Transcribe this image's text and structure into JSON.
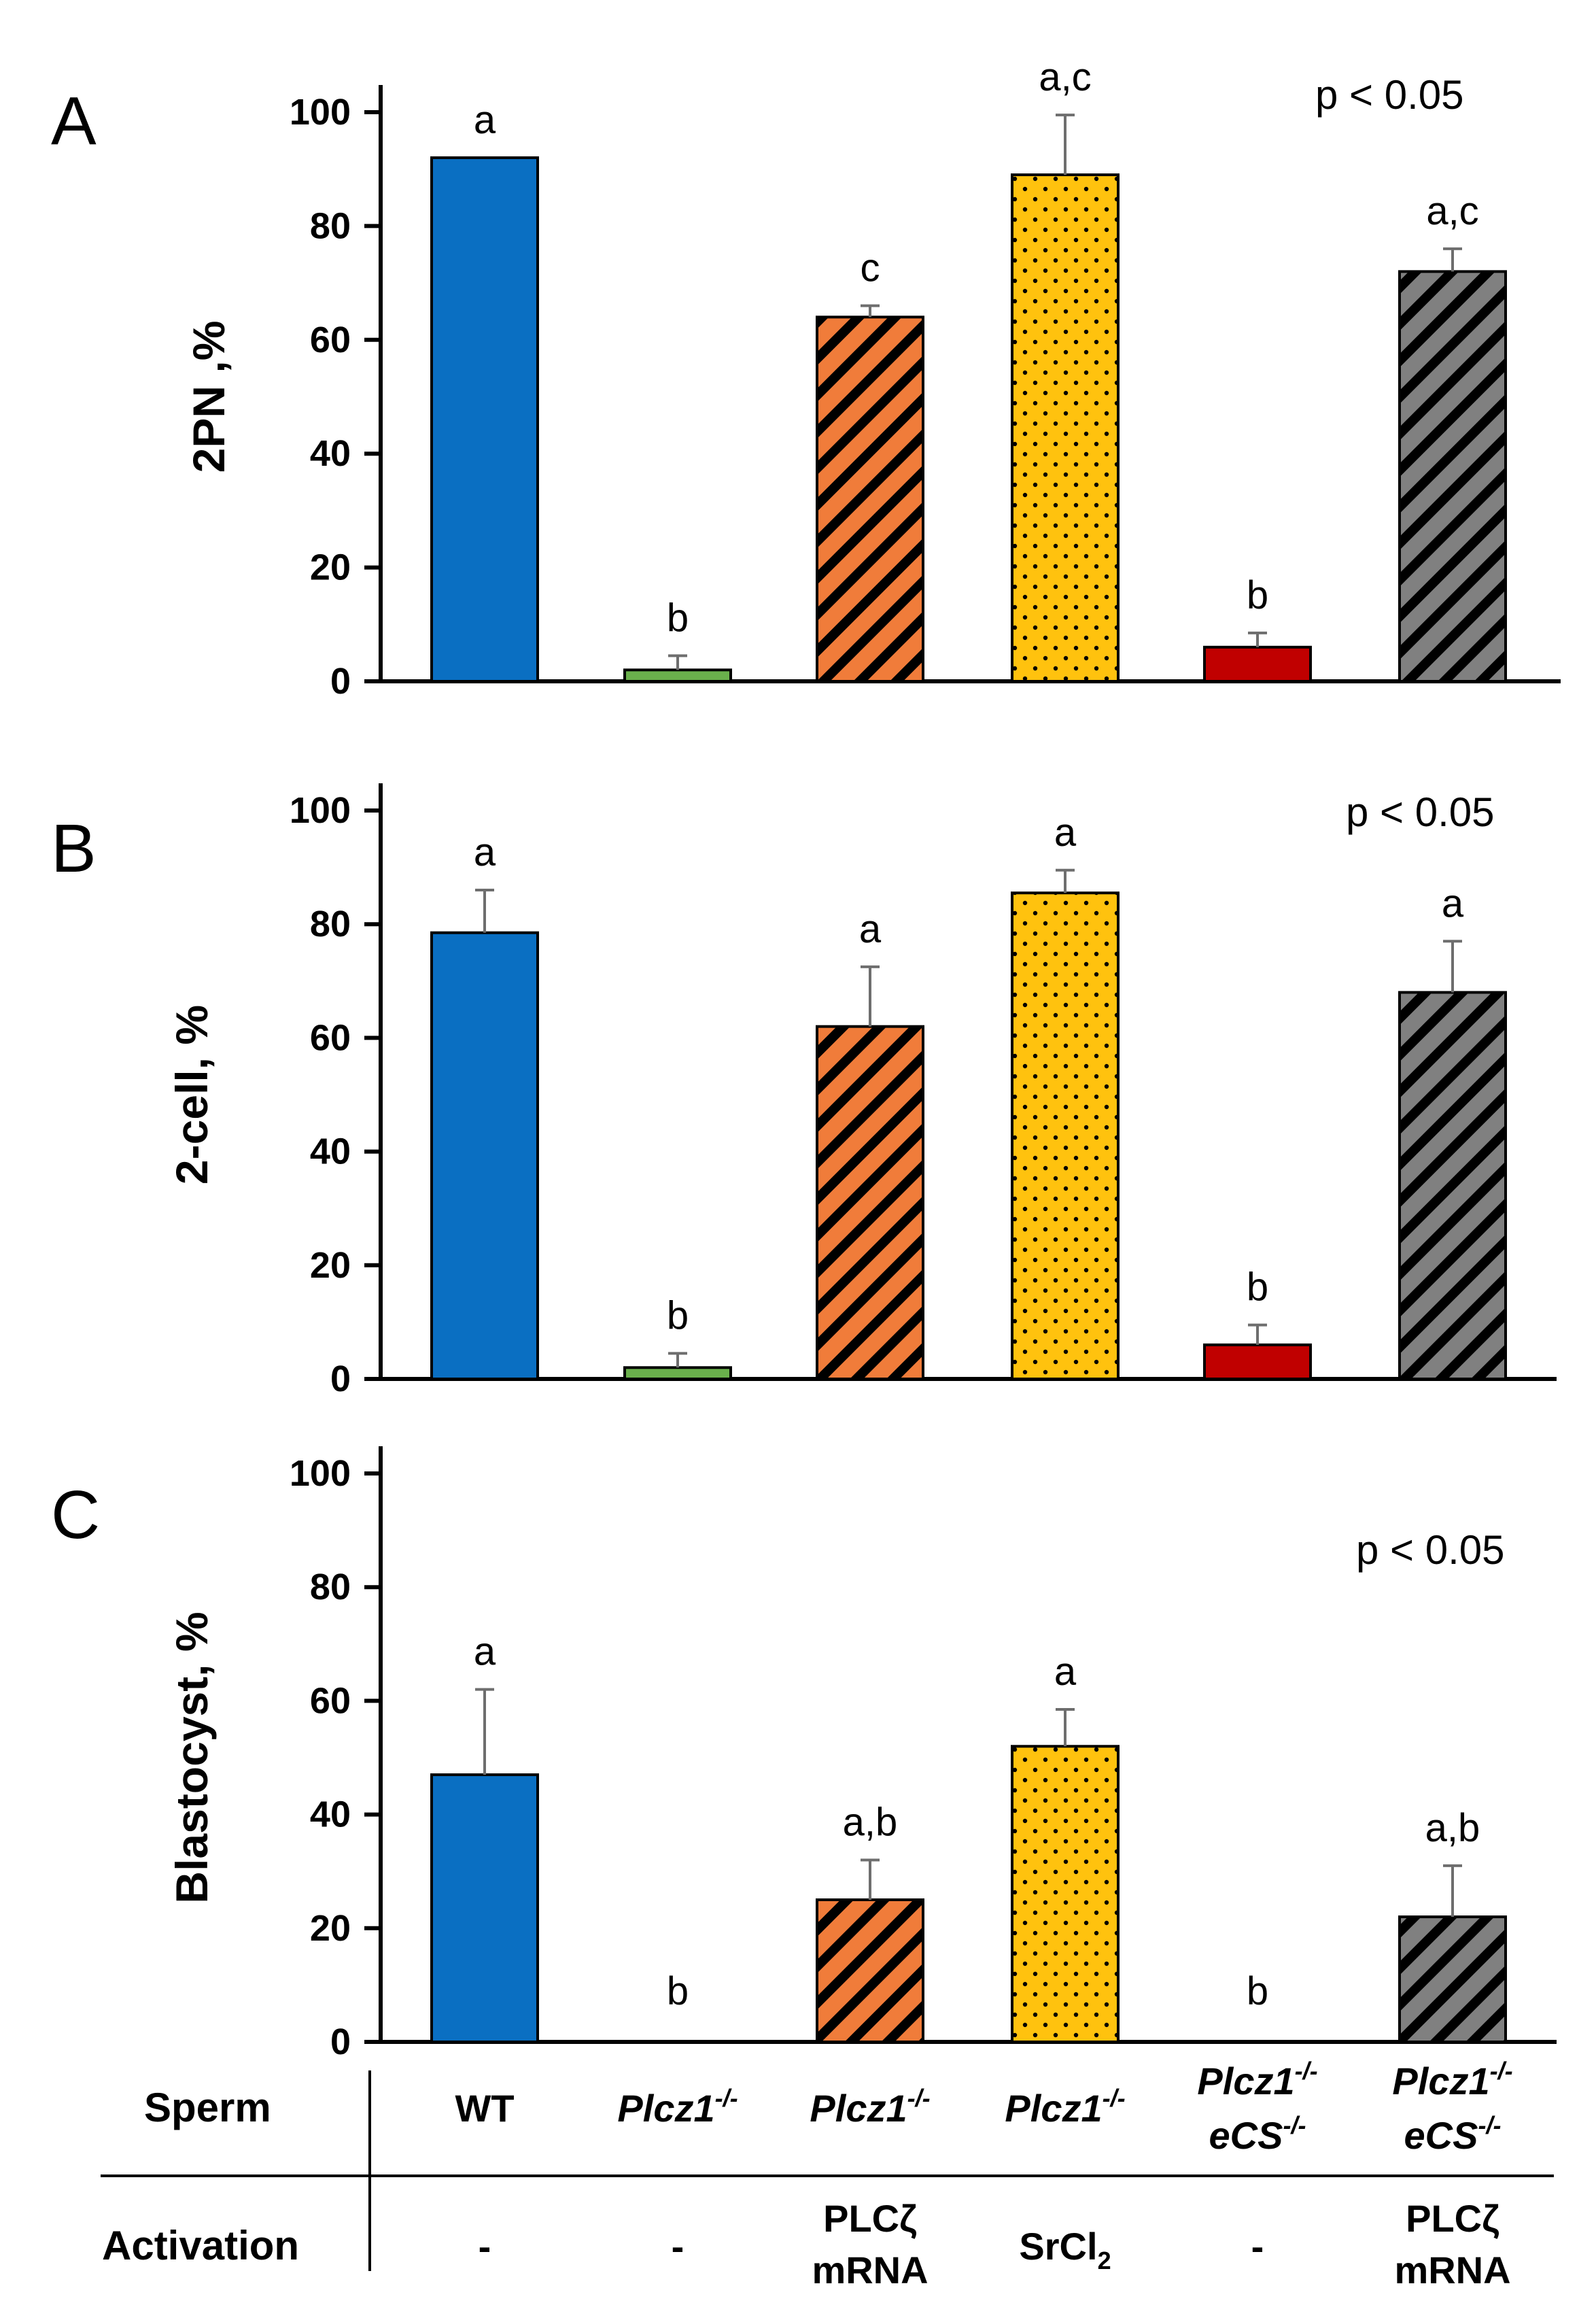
{
  "chart_data": [
    {
      "type": "bar",
      "panel": "A",
      "ylabel": "2PN ,%",
      "ylim": [
        0,
        100
      ],
      "yticks": [
        0,
        20,
        40,
        60,
        80,
        100
      ],
      "annotation": "p < 0.05",
      "values": [
        92,
        2,
        64,
        89,
        6,
        72
      ],
      "errors": [
        0,
        2.5,
        2,
        10.5,
        2.5,
        4
      ],
      "sig_labels": [
        "a",
        "b",
        "c",
        "a,c",
        "b",
        "a,c"
      ]
    },
    {
      "type": "bar",
      "panel": "B",
      "ylabel": "2-cell, %",
      "ylim": [
        0,
        100
      ],
      "yticks": [
        0,
        20,
        40,
        60,
        80,
        100
      ],
      "annotation": "p < 0.05",
      "values": [
        78.5,
        2,
        62,
        85.5,
        6,
        68
      ],
      "errors": [
        7.5,
        2.5,
        10.5,
        4,
        3.5,
        9
      ],
      "sig_labels": [
        "a",
        "b",
        "a",
        "a",
        "b",
        "a"
      ]
    },
    {
      "type": "bar",
      "panel": "C",
      "ylabel": "Blastocyst, %",
      "ylim": [
        0,
        100
      ],
      "yticks": [
        0,
        20,
        40,
        60,
        80,
        100
      ],
      "annotation": "p < 0.05",
      "values": [
        47,
        0,
        25,
        52,
        0,
        22
      ],
      "errors": [
        15,
        0,
        7,
        6.5,
        0,
        9
      ],
      "sig_labels": [
        "a",
        "b",
        "a,b",
        "a",
        "b",
        "a,b"
      ]
    }
  ],
  "groups": [
    {
      "color": "#0a6fc2",
      "pattern": "solid"
    },
    {
      "color": "#6ab04c",
      "pattern": "solid"
    },
    {
      "color": "#f07c3a",
      "pattern": "hatch"
    },
    {
      "color": "#ffc20e",
      "pattern": "dots"
    },
    {
      "color": "#c00000",
      "pattern": "solid"
    },
    {
      "color": "#808080",
      "pattern": "hatch"
    }
  ],
  "table": {
    "sperm_label": "Sperm",
    "activation_label": "Activation",
    "gene_text": "Plcz1",
    "gene2_text": "eCS",
    "sup_text": "-/-",
    "sperm": [
      "WT",
      "Plcz1-/-",
      "Plcz1-/-",
      "Plcz1-/-",
      "Plcz1-/- eCS-/-",
      "Plcz1-/- eCS-/-"
    ],
    "activation": [
      "-",
      "-",
      "PLCζ mRNA",
      "SrCl2",
      "-",
      "PLCζ mRNA"
    ],
    "plc_line1": "PLCζ",
    "plc_line2": "mRNA",
    "srcl_main": "SrCl",
    "srcl_sub": "2",
    "dash": "-"
  }
}
